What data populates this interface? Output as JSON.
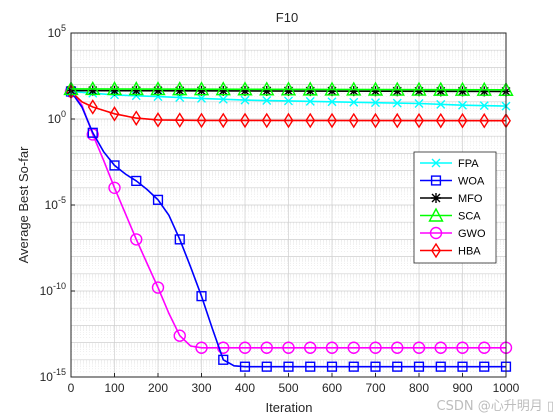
{
  "chart_data": {
    "type": "line",
    "title": "F10",
    "xlabel": "Iteration",
    "ylabel": "Average Best So-far",
    "xlim": [
      0,
      1000
    ],
    "x_ticks": [
      "0",
      "100",
      "200",
      "300",
      "400",
      "500",
      "600",
      "700",
      "800",
      "900",
      "1000"
    ],
    "y_scale": "log",
    "ylim_exponent": [
      -15,
      5
    ],
    "y_ticks": [
      {
        "base": "10",
        "exp": "5"
      },
      {
        "base": "10",
        "exp": "0"
      },
      {
        "base": "10",
        "exp": "-5"
      },
      {
        "base": "10",
        "exp": "-10"
      },
      {
        "base": "10",
        "exp": "-15"
      }
    ],
    "grid": true,
    "minor_grid": true,
    "legend_position": "right",
    "marker_every": 50,
    "series": [
      {
        "name": "FPA",
        "color": "#00FFFF",
        "marker": "x",
        "points": [
          [
            0,
            1.6
          ],
          [
            50,
            1.5
          ],
          [
            100,
            1.4
          ],
          [
            200,
            1.3
          ],
          [
            300,
            1.2
          ],
          [
            400,
            1.1
          ],
          [
            500,
            1.05
          ],
          [
            600,
            1.0
          ],
          [
            700,
            0.95
          ],
          [
            800,
            0.9
          ],
          [
            900,
            0.8
          ],
          [
            1000,
            0.75
          ]
        ]
      },
      {
        "name": "WOA",
        "color": "#0000FF",
        "marker": "square",
        "points": [
          [
            0,
            1.6
          ],
          [
            25,
            0.7
          ],
          [
            50,
            -0.8
          ],
          [
            75,
            -1.9
          ],
          [
            100,
            -2.7
          ],
          [
            125,
            -3.2
          ],
          [
            150,
            -3.6
          ],
          [
            175,
            -4.1
          ],
          [
            200,
            -4.7
          ],
          [
            225,
            -5.6
          ],
          [
            250,
            -7.0
          ],
          [
            275,
            -8.6
          ],
          [
            300,
            -10.3
          ],
          [
            325,
            -12.2
          ],
          [
            350,
            -14.0
          ],
          [
            375,
            -14.35
          ],
          [
            400,
            -14.4
          ],
          [
            1000,
            -14.4
          ]
        ]
      },
      {
        "name": "MFO",
        "color": "#000000",
        "marker": "star",
        "points": [
          [
            0,
            1.65
          ],
          [
            1000,
            1.6
          ]
        ]
      },
      {
        "name": "SCA",
        "color": "#00FF00",
        "marker": "triangle",
        "points": [
          [
            0,
            1.75
          ],
          [
            1000,
            1.7
          ]
        ]
      },
      {
        "name": "GWO",
        "color": "#FF00FF",
        "marker": "circle",
        "points": [
          [
            0,
            1.6
          ],
          [
            25,
            0.8
          ],
          [
            50,
            -0.9
          ],
          [
            75,
            -2.4
          ],
          [
            100,
            -4.0
          ],
          [
            125,
            -5.5
          ],
          [
            150,
            -7.0
          ],
          [
            175,
            -8.4
          ],
          [
            200,
            -9.8
          ],
          [
            225,
            -11.3
          ],
          [
            250,
            -12.6
          ],
          [
            275,
            -13.2
          ],
          [
            300,
            -13.3
          ],
          [
            1000,
            -13.3
          ]
        ]
      },
      {
        "name": "HBA",
        "color": "#FF0000",
        "marker": "diamond",
        "points": [
          [
            0,
            1.6
          ],
          [
            25,
            1.0
          ],
          [
            50,
            0.7
          ],
          [
            75,
            0.5
          ],
          [
            100,
            0.3
          ],
          [
            150,
            0.05
          ],
          [
            200,
            -0.05
          ],
          [
            300,
            -0.08
          ],
          [
            1000,
            -0.1
          ]
        ]
      }
    ]
  },
  "watermark": "CSDN @心升明月 ▯"
}
